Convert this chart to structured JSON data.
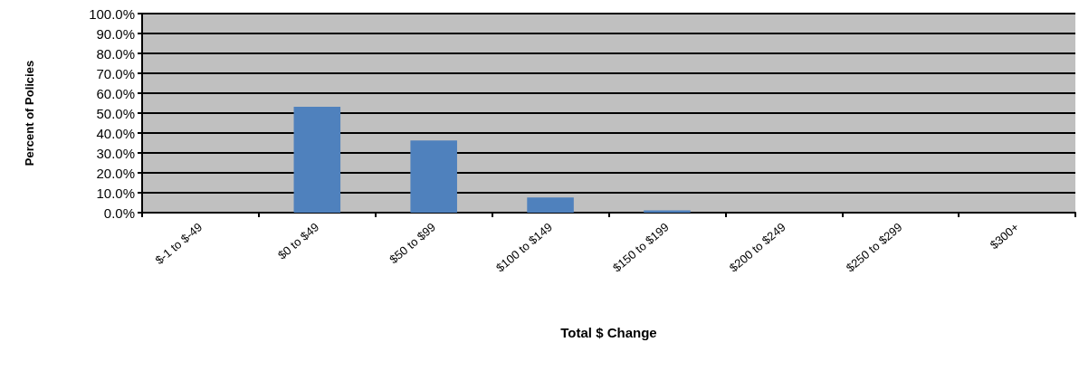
{
  "chart_data": {
    "type": "bar",
    "xlabel": "Total $ Change",
    "ylabel": "Percent of Policies",
    "categories": [
      "$-1 to $-49",
      "$0 to $49",
      "$50 to $99",
      "$100 to $149",
      "$150 to $199",
      "$200 to $249",
      "$250 to $299",
      "$300+"
    ],
    "values": [
      0,
      53.2,
      36.2,
      7.6,
      1.1,
      0,
      0,
      0
    ],
    "color": "#4f81bd",
    "ylim": [
      0,
      100
    ],
    "yticks": [
      {
        "value": 0,
        "label": "0.0%"
      },
      {
        "value": 10,
        "label": "10.0%"
      },
      {
        "value": 20,
        "label": "20.0%"
      },
      {
        "value": 30,
        "label": "30.0%"
      },
      {
        "value": 40,
        "label": "40.0%"
      },
      {
        "value": 50,
        "label": "50.0%"
      },
      {
        "value": 60,
        "label": "60.0%"
      },
      {
        "value": 70,
        "label": "70.0%"
      },
      {
        "value": 80,
        "label": "80.0%"
      },
      {
        "value": 90,
        "label": "90.0%"
      },
      {
        "value": 100,
        "label": "100.0%"
      }
    ],
    "grid": "y"
  }
}
